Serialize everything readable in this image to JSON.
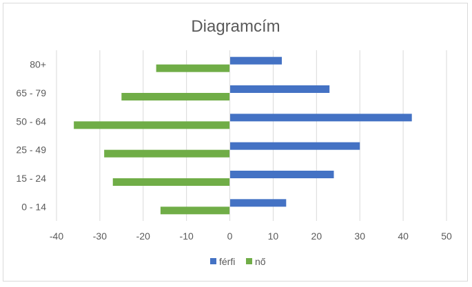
{
  "chart_data": {
    "type": "bar",
    "orientation": "horizontal",
    "title": "Diagramcím",
    "categories": [
      "0 - 14",
      "15 - 24",
      "25 - 49",
      "50 - 64",
      "65 - 79",
      "80+"
    ],
    "series": [
      {
        "name": "férfi",
        "color": "#4472c4",
        "values": [
          13,
          24,
          30,
          42,
          23,
          12
        ]
      },
      {
        "name": "nő",
        "color": "#70ad47",
        "values": [
          -16,
          -27,
          -29,
          -36,
          -25,
          -17
        ]
      }
    ],
    "xlim": [
      -40,
      50
    ],
    "xticks": [
      "-40",
      "-30",
      "-20",
      "-10",
      "0",
      "10",
      "20",
      "30",
      "40",
      "50"
    ],
    "grid": true,
    "legend_position": "bottom",
    "axis_color": "#d9d9d9"
  }
}
